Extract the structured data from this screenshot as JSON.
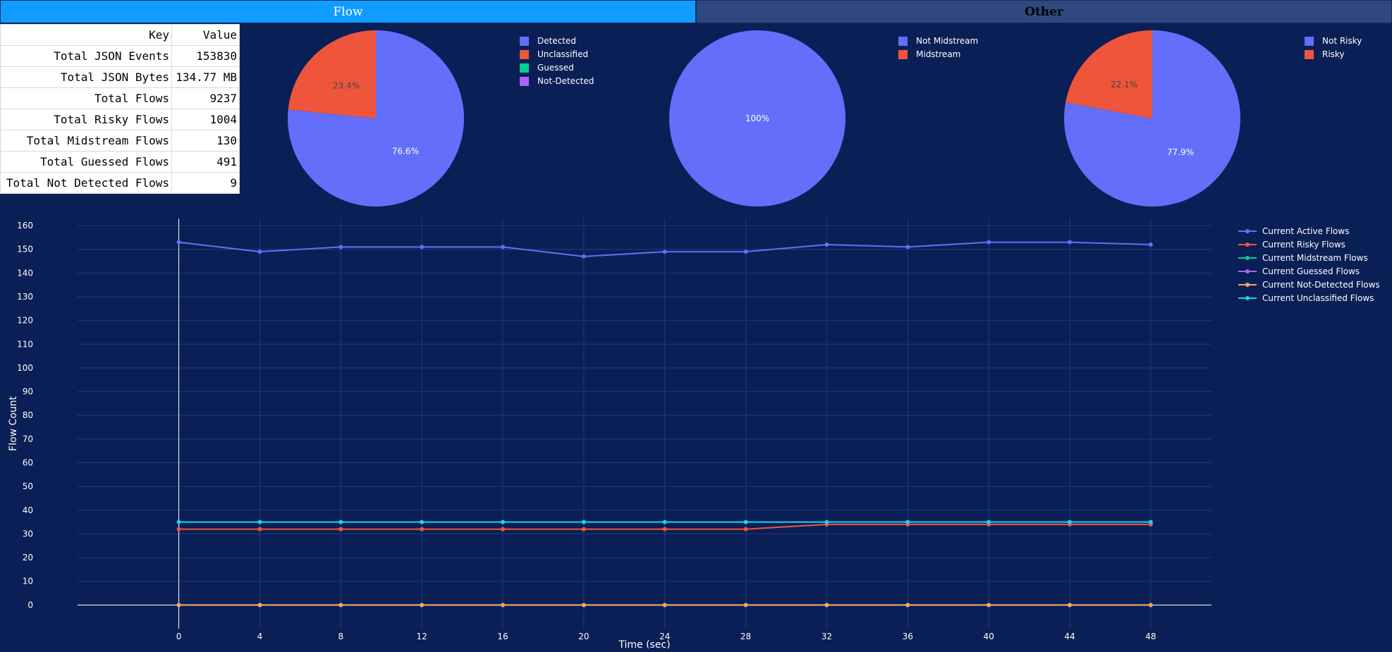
{
  "tabs": [
    {
      "label": "Flow"
    },
    {
      "label": "Other"
    }
  ],
  "stats_table": {
    "headers": [
      "Key",
      "Value"
    ],
    "rows": [
      [
        "Total JSON Events",
        "153830"
      ],
      [
        "Total JSON Bytes",
        "134.77 MB"
      ],
      [
        "Total Flows",
        "9237"
      ],
      [
        "Total Risky Flows",
        "1004"
      ],
      [
        "Total Midstream Flows",
        "130"
      ],
      [
        "Total Guessed Flows",
        "491"
      ],
      [
        "Total Not Detected Flows",
        "9"
      ]
    ]
  },
  "pies": [
    {
      "legend": [
        {
          "label": "Detected",
          "color": "#636efa"
        },
        {
          "label": "Unclassified",
          "color": "#ef553b"
        },
        {
          "label": "Guessed",
          "color": "#00cc96"
        },
        {
          "label": "Not-Detected",
          "color": "#ab63fa"
        }
      ],
      "slices": [
        {
          "name": "Detected",
          "value": 76.6,
          "label": "76.6%",
          "color": "#636efa"
        },
        {
          "name": "Unclassified",
          "value": 23.4,
          "label": "23.4%",
          "color": "#ef553b"
        }
      ]
    },
    {
      "legend": [
        {
          "label": "Not Midstream",
          "color": "#636efa"
        },
        {
          "label": "Midstream",
          "color": "#ef553b"
        }
      ],
      "slices": [
        {
          "name": "Not Midstream",
          "value": 100,
          "label": "100%",
          "color": "#636efa"
        }
      ]
    },
    {
      "legend": [
        {
          "label": "Not Risky",
          "color": "#636efa"
        },
        {
          "label": "Risky",
          "color": "#ef553b"
        }
      ],
      "slices": [
        {
          "name": "Not Risky",
          "value": 77.9,
          "label": "77.9%",
          "color": "#636efa"
        },
        {
          "name": "Risky",
          "value": 22.1,
          "label": "22.1%",
          "color": "#ef553b"
        }
      ]
    }
  ],
  "chart_data": {
    "type": "line",
    "xlabel": "Time (sec)",
    "ylabel": "Flow Count",
    "xlim": [
      -5,
      51
    ],
    "ylim": [
      -10,
      163
    ],
    "x_ticks": [
      0,
      4,
      8,
      12,
      16,
      20,
      24,
      28,
      32,
      36,
      40,
      44,
      48
    ],
    "y_ticks": [
      0,
      10,
      20,
      30,
      40,
      50,
      60,
      70,
      80,
      90,
      100,
      110,
      120,
      130,
      140,
      150,
      160
    ],
    "grid": true,
    "legend_position": "right",
    "x": [
      0,
      4,
      8,
      12,
      16,
      20,
      24,
      28,
      32,
      36,
      40,
      44,
      48
    ],
    "series": [
      {
        "name": "Current Active Flows",
        "color": "#636efa",
        "values": [
          153,
          149,
          151,
          151,
          151,
          147,
          149,
          149,
          152,
          151,
          153,
          153,
          152
        ]
      },
      {
        "name": "Current Risky Flows",
        "color": "#ef553b",
        "values": [
          32,
          32,
          32,
          32,
          32,
          32,
          32,
          32,
          34,
          34,
          34,
          34,
          34
        ]
      },
      {
        "name": "Current Midstream Flows",
        "color": "#00cc96",
        "values": [
          0,
          0,
          0,
          0,
          0,
          0,
          0,
          0,
          0,
          0,
          0,
          0,
          0
        ]
      },
      {
        "name": "Current Guessed Flows",
        "color": "#ab63fa",
        "values": [
          0,
          0,
          0,
          0,
          0,
          0,
          0,
          0,
          0,
          0,
          0,
          0,
          0
        ]
      },
      {
        "name": "Current Not-Detected Flows",
        "color": "#ffa15a",
        "values": [
          0,
          0,
          0,
          0,
          0,
          0,
          0,
          0,
          0,
          0,
          0,
          0,
          0
        ]
      },
      {
        "name": "Current Unclassified Flows",
        "color": "#19d3f3",
        "values": [
          35,
          35,
          35,
          35,
          35,
          35,
          35,
          35,
          35,
          35,
          35,
          35,
          35
        ]
      }
    ]
  }
}
